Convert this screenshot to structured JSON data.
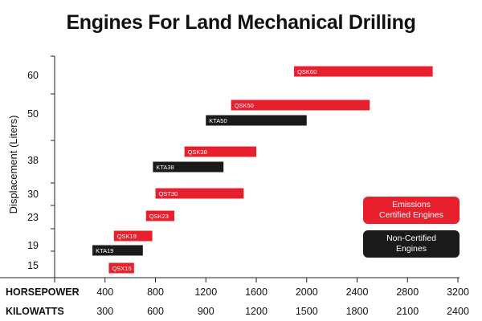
{
  "chart_data": {
    "type": "bar",
    "orientation": "horizontal-range",
    "title": "Engines For Land Mechanical Drilling",
    "ylabel": "Displacement (Liters)",
    "y_tick_labels": [
      "15",
      "19",
      "23",
      "30",
      "38",
      "50",
      "60"
    ],
    "x_axes": [
      {
        "name": "HORSEPOWER",
        "ticks": [
          400,
          800,
          1200,
          1600,
          2000,
          2400,
          2800,
          3200
        ],
        "range": [
          0,
          3200
        ]
      },
      {
        "name": "KILOWATTS",
        "ticks": [
          300,
          600,
          900,
          1200,
          1500,
          1800,
          2100,
          2400
        ]
      }
    ],
    "series": [
      {
        "name": "Emissions Certified Engines",
        "color": "#e8202e"
      },
      {
        "name": "Non-Certified Engines",
        "color": "#1a1a1a"
      }
    ],
    "legend": {
      "placement": "right",
      "entries": [
        {
          "lines": [
            "Emissions",
            "Certified Engines"
          ],
          "color": "#e8202e"
        },
        {
          "lines": [
            "Non-Certified",
            "Engines"
          ],
          "color": "#1a1a1a"
        }
      ]
    },
    "bars": [
      {
        "label": "QSX15",
        "displacement": "15",
        "hp_start": 430,
        "hp_end": 630,
        "series": "Emissions Certified Engines"
      },
      {
        "label": "KTA19",
        "displacement": "19",
        "hp_start": 300,
        "hp_end": 700,
        "series": "Non-Certified Engines"
      },
      {
        "label": "QSK19",
        "displacement": "19",
        "hp_start": 470,
        "hp_end": 775,
        "series": "Emissions Certified Engines"
      },
      {
        "label": "QSK23",
        "displacement": "23",
        "hp_start": 725,
        "hp_end": 950,
        "series": "Emissions Certified Engines"
      },
      {
        "label": "QST30",
        "displacement": "30",
        "hp_start": 800,
        "hp_end": 1500,
        "series": "Emissions Certified Engines"
      },
      {
        "label": "KTA38",
        "displacement": "38",
        "hp_start": 780,
        "hp_end": 1340,
        "series": "Non-Certified Engines"
      },
      {
        "label": "QSK38",
        "displacement": "38",
        "hp_start": 1030,
        "hp_end": 1600,
        "series": "Emissions Certified Engines"
      },
      {
        "label": "KTA50",
        "displacement": "50",
        "hp_start": 1200,
        "hp_end": 2000,
        "series": "Non-Certified Engines"
      },
      {
        "label": "QSK50",
        "displacement": "50",
        "hp_start": 1400,
        "hp_end": 2500,
        "series": "Emissions Certified Engines"
      },
      {
        "label": "QSK60",
        "displacement": "60",
        "hp_start": 1900,
        "hp_end": 3000,
        "series": "Emissions Certified Engines"
      }
    ]
  }
}
